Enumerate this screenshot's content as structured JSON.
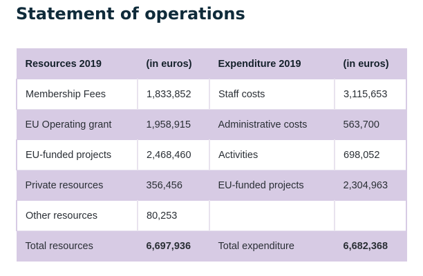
{
  "title": "Statement of operations",
  "table": {
    "headers": [
      "Resources 2019",
      "(in euros)",
      "Expenditure 2019",
      "(in euros)"
    ],
    "rows": [
      [
        "Membership Fees",
        "1,833,852",
        "Staff costs",
        "3,115,653"
      ],
      [
        "EU Operating grant",
        "1,958,915",
        "Administrative costs",
        "563,700"
      ],
      [
        "EU-funded projects",
        "2,468,460",
        "Activities",
        "698,052"
      ],
      [
        "Private resources",
        "356,456",
        "EU-funded projects",
        "2,304,963"
      ],
      [
        "Other resources",
        "80,253",
        "",
        ""
      ]
    ],
    "totals": [
      "Total resources",
      "6,697,936",
      "Total expenditure",
      "6,682,368"
    ]
  },
  "colors": {
    "title": "#0f2b3a",
    "shaded_row": "#d7cbe4",
    "plain_row": "#ffffff"
  }
}
